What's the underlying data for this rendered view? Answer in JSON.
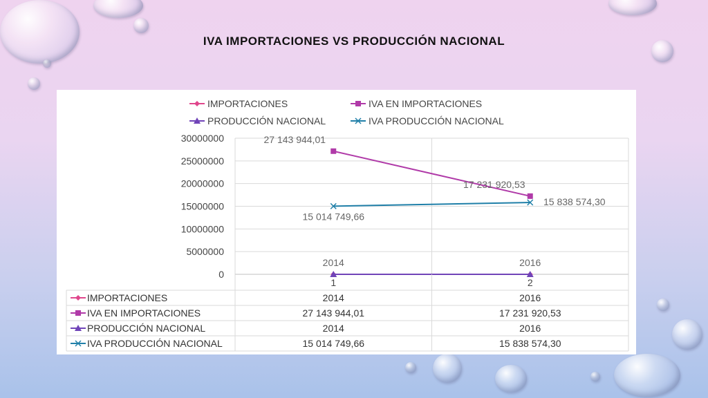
{
  "slide": {
    "title": "IVA IMPORTACIONES VS PRODUCCIÓN NACIONAL"
  },
  "colors": {
    "importaciones": "#e0468c",
    "iva_importaciones": "#b03aa8",
    "produccion_nacional": "#7044b8",
    "iva_produccion_nacional": "#1f7fa8"
  },
  "chart_data": {
    "type": "line",
    "categories": [
      "1",
      "2"
    ],
    "ylim": [
      0,
      30000000
    ],
    "y_ticks": [
      "0",
      "5000000",
      "10000000",
      "15000000",
      "20000000",
      "25000000",
      "30000000"
    ],
    "grid": true,
    "legend": "top",
    "data_table": true,
    "series": [
      {
        "name": "IMPORTACIONES",
        "values": [
          2014,
          2016
        ],
        "labels": [
          "2014",
          "2016"
        ],
        "marker": "diamond",
        "color": "#e0468c"
      },
      {
        "name": "IVA EN IMPORTACIONES",
        "values": [
          27143944.01,
          17231920.53
        ],
        "labels": [
          "27 143 944,01",
          "17 231 920,53"
        ],
        "marker": "square",
        "color": "#b03aa8"
      },
      {
        "name": "PRODUCCIÓN NACIONAL",
        "values": [
          2014,
          2016
        ],
        "labels": [
          "2014",
          "2016"
        ],
        "marker": "triangle",
        "color": "#7044b8"
      },
      {
        "name": "IVA PRODUCCIÓN NACIONAL",
        "values": [
          15014749.66,
          15838574.3
        ],
        "labels": [
          "15 014 749,66",
          "15 838 574,30"
        ],
        "marker": "x",
        "color": "#1f7fa8"
      }
    ]
  }
}
